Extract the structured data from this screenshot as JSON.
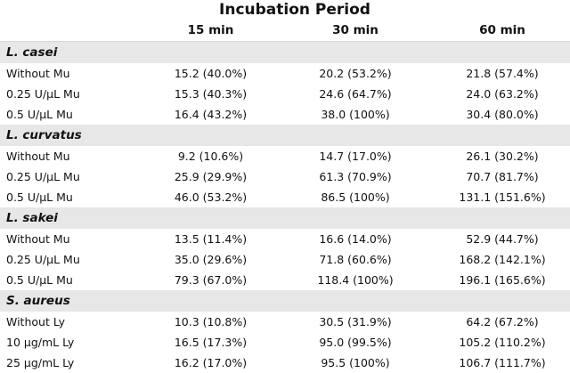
{
  "title": "Incubation Period",
  "columns": [
    "",
    "15 min",
    "30 min",
    "60 min"
  ],
  "groups": [
    {
      "name": "L. casei",
      "rows": [
        [
          "Without Mu",
          "15.2 (40.0%)",
          "20.2 (53.2%)",
          "21.8 (57.4%)"
        ],
        [
          "0.25 U/µL Mu",
          "15.3 (40.3%)",
          "24.6 (64.7%)",
          "24.0 (63.2%)"
        ],
        [
          "0.5 U/µL Mu",
          "16.4 (43.2%)",
          "38.0 (100%)",
          "30.4 (80.0%)"
        ]
      ]
    },
    {
      "name": "L. curvatus",
      "rows": [
        [
          "Without Mu",
          "9.2 (10.6%)",
          "14.7 (17.0%)",
          "26.1 (30.2%)"
        ],
        [
          "0.25 U/µL Mu",
          "25.9 (29.9%)",
          "61.3 (70.9%)",
          "70.7 (81.7%)"
        ],
        [
          "0.5 U/µL Mu",
          "46.0 (53.2%)",
          "86.5 (100%)",
          "131.1 (151.6%)"
        ]
      ]
    },
    {
      "name": "L. sakei",
      "rows": [
        [
          "Without Mu",
          "13.5 (11.4%)",
          "16.6 (14.0%)",
          "52.9 (44.7%)"
        ],
        [
          "0.25 U/µL Mu",
          "35.0 (29.6%)",
          "71.8 (60.6%)",
          "168.2 (142.1%)"
        ],
        [
          "0.5 U/µL Mu",
          "79.3 (67.0%)",
          "118.4 (100%)",
          "196.1 (165.6%)"
        ]
      ]
    },
    {
      "name": "S. aureus",
      "rows": [
        [
          "Without Ly",
          "10.3 (10.8%)",
          "30.5 (31.9%)",
          "64.2 (67.2%)"
        ],
        [
          "10 µg/mL Ly",
          "16.5 (17.3%)",
          "95.0 (99.5%)",
          "105.2 (110.2%)"
        ],
        [
          "25 µg/mL Ly",
          "16.2 (17.0%)",
          "95.5 (100%)",
          "106.7 (111.7%)"
        ]
      ]
    }
  ]
}
